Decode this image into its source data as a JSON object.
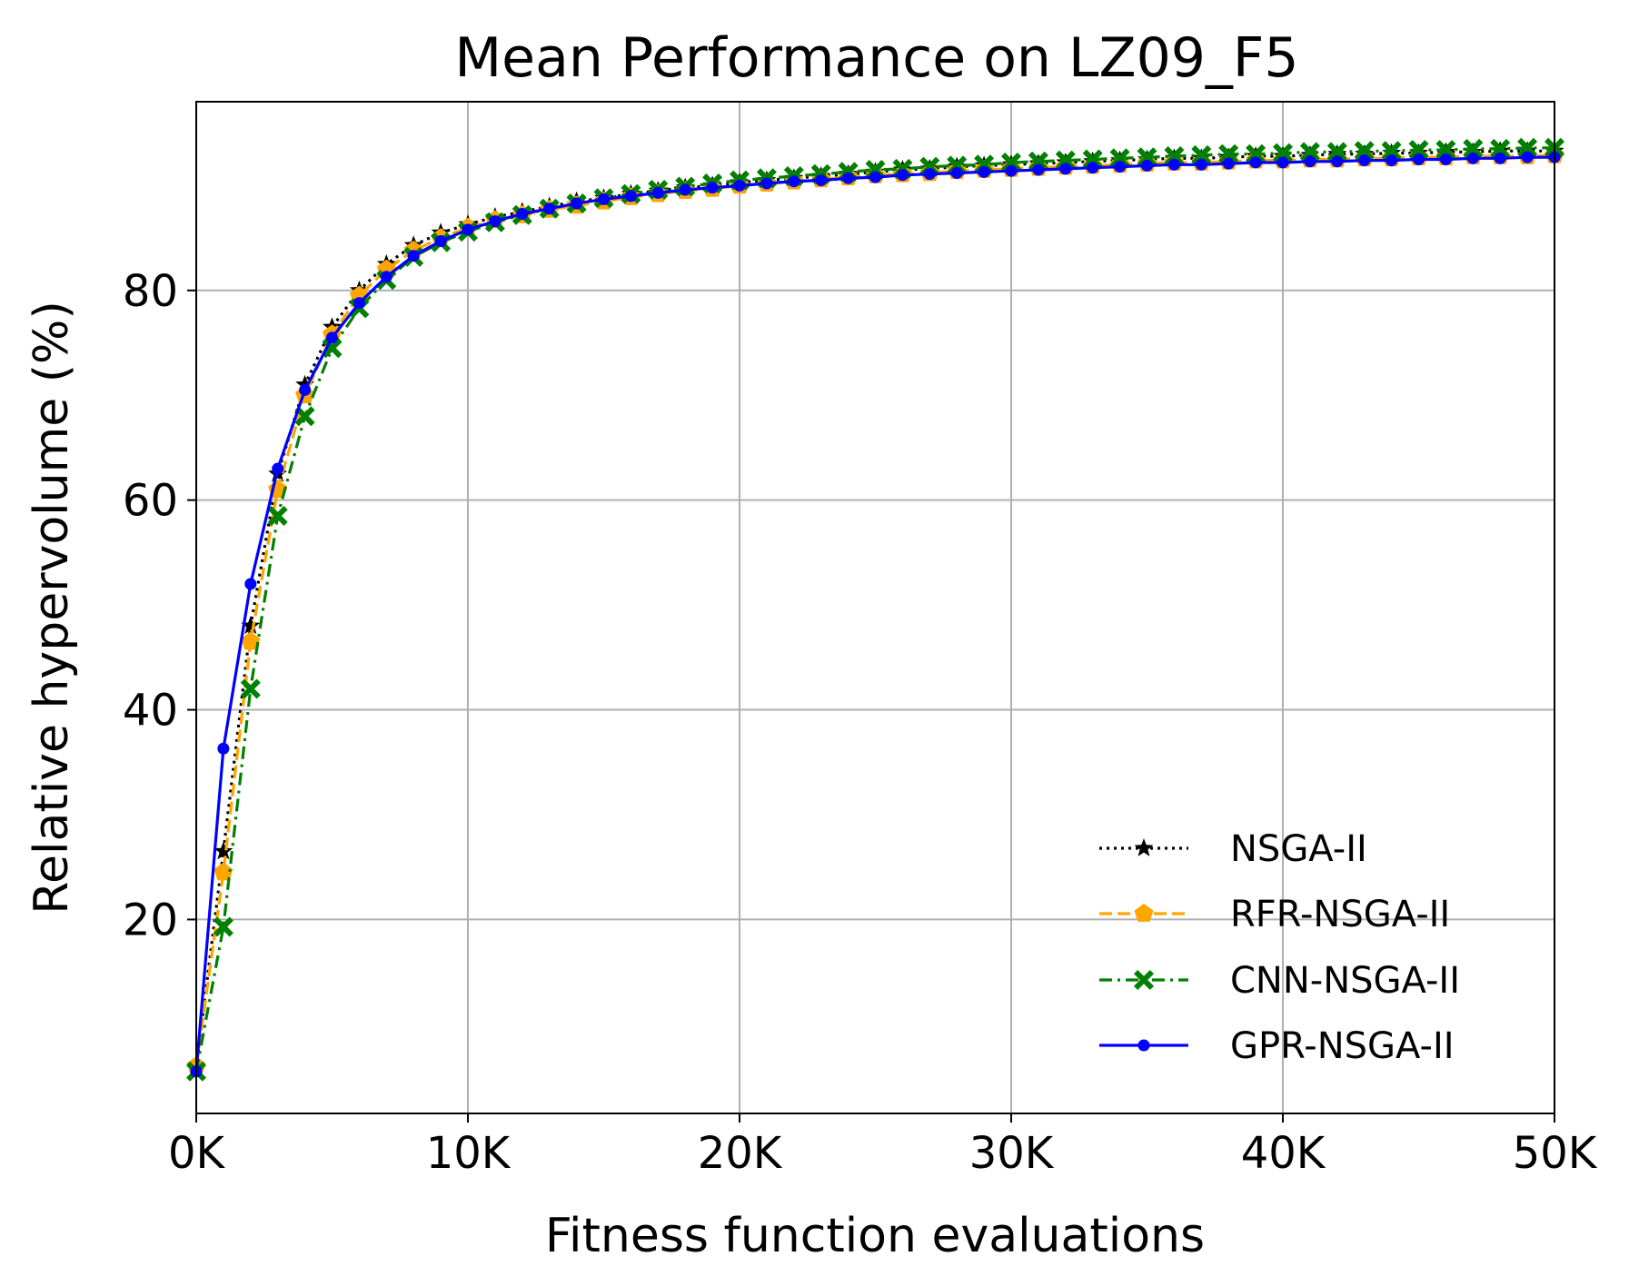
{
  "chart_data": {
    "type": "line",
    "title": "Mean Performance on LZ09_F5",
    "xlabel": "Fitness function evaluations",
    "ylabel": "Relative hypervolume (%)",
    "xlim": [
      0,
      50000
    ],
    "ylim": [
      1.5,
      98
    ],
    "x_ticks": [
      {
        "value": 0,
        "label": "0K"
      },
      {
        "value": 10000,
        "label": "10K"
      },
      {
        "value": 20000,
        "label": "20K"
      },
      {
        "value": 30000,
        "label": "30K"
      },
      {
        "value": 40000,
        "label": "40K"
      },
      {
        "value": 50000,
        "label": "50K"
      }
    ],
    "y_ticks": [
      {
        "value": 20,
        "label": "20"
      },
      {
        "value": 40,
        "label": "40"
      },
      {
        "value": 60,
        "label": "60"
      },
      {
        "value": 80,
        "label": "80"
      }
    ],
    "grid": true,
    "legend_position": "lower-right",
    "x": [
      0,
      1000,
      2000,
      3000,
      4000,
      5000,
      6000,
      7000,
      8000,
      9000,
      10000,
      11000,
      12000,
      13000,
      14000,
      15000,
      16000,
      17000,
      18000,
      19000,
      20000,
      21000,
      22000,
      23000,
      24000,
      25000,
      26000,
      27000,
      28000,
      29000,
      30000,
      31000,
      32000,
      33000,
      34000,
      35000,
      36000,
      37000,
      38000,
      39000,
      40000,
      41000,
      42000,
      43000,
      44000,
      45000,
      46000,
      47000,
      48000,
      49000,
      50000
    ],
    "series": [
      {
        "name": "NSGA-II",
        "color": "#000000",
        "line_style": "dotted",
        "marker": "star",
        "values": [
          6.0,
          26.5,
          48.0,
          62.5,
          71.0,
          76.5,
          80.0,
          82.5,
          84.3,
          85.5,
          86.3,
          87.0,
          87.5,
          88.0,
          88.5,
          88.8,
          89.2,
          89.5,
          89.8,
          90.0,
          90.3,
          90.5,
          90.7,
          90.9,
          91.1,
          91.3,
          91.5,
          91.6,
          91.8,
          91.9,
          92.0,
          92.1,
          92.2,
          92.3,
          92.4,
          92.5,
          92.6,
          92.6,
          92.7,
          92.8,
          92.8,
          92.9,
          93.0,
          93.0,
          93.1,
          93.1,
          93.2,
          93.2,
          93.3,
          93.3,
          93.3
        ]
      },
      {
        "name": "RFR-NSGA-II",
        "color": "#ffa500",
        "line_style": "dashed",
        "marker": "pentagon",
        "values": [
          6.0,
          24.5,
          46.5,
          61.0,
          70.0,
          75.8,
          79.5,
          82.0,
          83.8,
          85.0,
          86.0,
          86.7,
          87.2,
          87.7,
          88.1,
          88.5,
          88.9,
          89.2,
          89.5,
          89.7,
          90.0,
          90.2,
          90.4,
          90.6,
          90.8,
          91.0,
          91.1,
          91.2,
          91.4,
          91.5,
          91.6,
          91.7,
          91.8,
          91.9,
          92.0,
          92.1,
          92.2,
          92.2,
          92.3,
          92.4,
          92.4,
          92.5,
          92.5,
          92.6,
          92.6,
          92.7,
          92.7,
          92.8,
          92.8,
          92.8,
          92.9
        ]
      },
      {
        "name": "CNN-NSGA-II",
        "color": "#008000",
        "line_style": "dashdot",
        "marker": "x-filled",
        "values": [
          5.5,
          19.3,
          42.0,
          58.5,
          68.0,
          74.5,
          78.3,
          81.0,
          83.2,
          84.6,
          85.6,
          86.5,
          87.2,
          87.8,
          88.3,
          88.8,
          89.2,
          89.6,
          89.9,
          90.2,
          90.5,
          90.7,
          90.9,
          91.1,
          91.3,
          91.5,
          91.6,
          91.8,
          91.9,
          92.0,
          92.2,
          92.3,
          92.4,
          92.5,
          92.6,
          92.7,
          92.8,
          92.9,
          93.0,
          93.0,
          93.1,
          93.2,
          93.2,
          93.3,
          93.3,
          93.4,
          93.4,
          93.5,
          93.5,
          93.6,
          93.6
        ]
      },
      {
        "name": "GPR-NSGA-II",
        "color": "#0000ff",
        "line_style": "solid",
        "marker": "circle",
        "values": [
          5.5,
          36.3,
          52.0,
          63.0,
          70.5,
          75.5,
          78.8,
          81.3,
          83.3,
          84.7,
          85.8,
          86.6,
          87.3,
          87.8,
          88.3,
          88.7,
          89.0,
          89.3,
          89.6,
          89.8,
          90.0,
          90.2,
          90.4,
          90.5,
          90.7,
          90.8,
          91.0,
          91.1,
          91.2,
          91.3,
          91.4,
          91.5,
          91.6,
          91.7,
          91.8,
          91.9,
          92.0,
          92.0,
          92.1,
          92.2,
          92.2,
          92.3,
          92.3,
          92.4,
          92.4,
          92.5,
          92.5,
          92.6,
          92.6,
          92.7,
          92.7
        ]
      }
    ]
  }
}
